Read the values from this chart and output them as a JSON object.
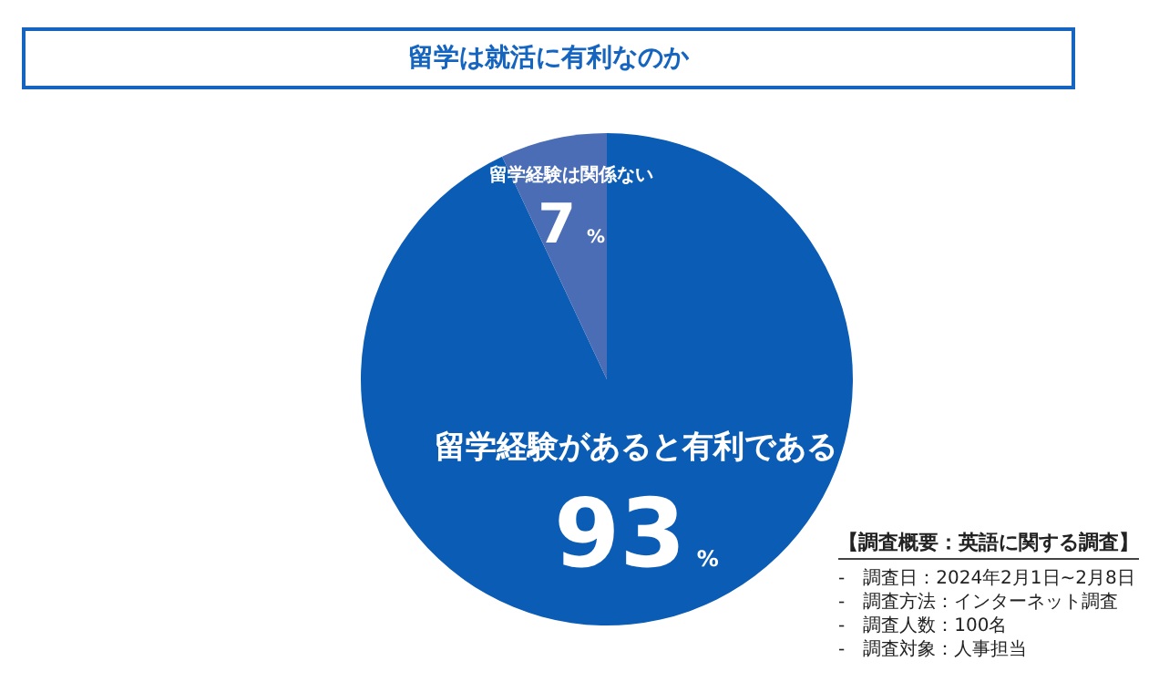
{
  "chart_data": {
    "type": "pie",
    "title": "留学は就活に有利なのか",
    "categories": [
      "留学経験があると有利である",
      "留学経験は関係ない"
    ],
    "values": [
      93,
      7
    ],
    "value_labels": [
      "93%",
      "7%"
    ],
    "colors": [
      "#0b5cb5",
      "#4a6db5"
    ],
    "legend": false,
    "annotations": [
      "【調査概要：英語に関する調査】",
      "-　調査日：2024年2月1日~2月8日",
      "-　調査方法：インターネット調査",
      "-　調査人数：100名",
      "-　調査対象：人事担当"
    ]
  }
}
